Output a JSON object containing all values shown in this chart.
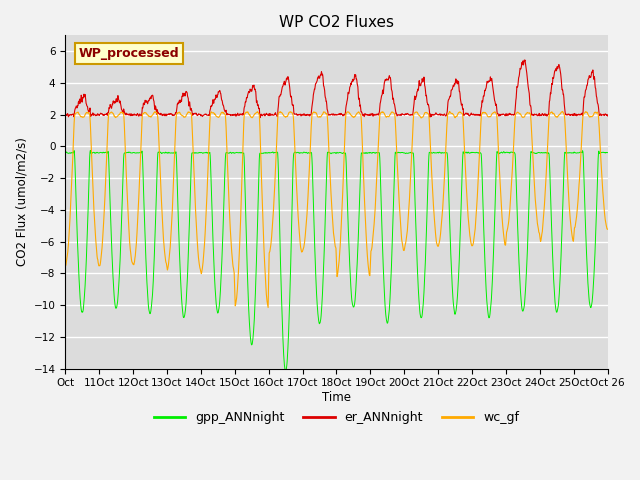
{
  "title": "WP CO2 Fluxes",
  "xlabel": "Time",
  "ylabel": "CO2 Flux (umol/m2/s)",
  "ylim": [
    -14,
    7
  ],
  "yticks": [
    -14,
    -12,
    -10,
    -8,
    -6,
    -4,
    -2,
    0,
    2,
    4,
    6
  ],
  "bg_color": "#dcdcdc",
  "fig_color": "#f2f2f2",
  "line_colors": {
    "gpp": "#00ee00",
    "er": "#dd0000",
    "wc": "#ffaa00"
  },
  "legend_label": "WP_processed",
  "legend_text_color": "#8b0000",
  "legend_bg_color": "#ffffcc",
  "legend_edge_color": "#cc9900",
  "n_days": 16,
  "pts_per_day": 96,
  "gpp_night": -0.4,
  "gpp_amplitudes": [
    -10.5,
    -10.2,
    -10.6,
    -10.8,
    -10.5,
    -12.5,
    -14.2,
    -11.2,
    -10.2,
    -11.2,
    -10.8,
    -10.6,
    -10.8,
    -10.4,
    -10.5,
    -10.2
  ],
  "er_base": 2.0,
  "er_amplitudes": [
    3.1,
    2.9,
    3.1,
    3.3,
    3.3,
    3.7,
    4.3,
    4.5,
    4.3,
    4.3,
    4.1,
    4.1,
    4.2,
    5.3,
    5.1,
    4.6
  ],
  "wc_day": 2.0,
  "wc_amplitudes": [
    -7.5,
    -7.5,
    -7.5,
    -7.8,
    -8.0,
    -10.2,
    -6.8,
    -6.5,
    -8.2,
    -6.6,
    -6.4,
    -6.2,
    -6.3,
    -5.5,
    -6.0,
    -5.2
  ],
  "x_tick_labels": [
    "Oct",
    "11Oct",
    "12Oct",
    "13Oct",
    "14Oct",
    "15Oct",
    "16Oct",
    "17Oct",
    "18Oct",
    "19Oct",
    "20Oct",
    "21Oct",
    "22Oct",
    "23Oct",
    "24Oct",
    "25Oct",
    "Oct 26"
  ]
}
